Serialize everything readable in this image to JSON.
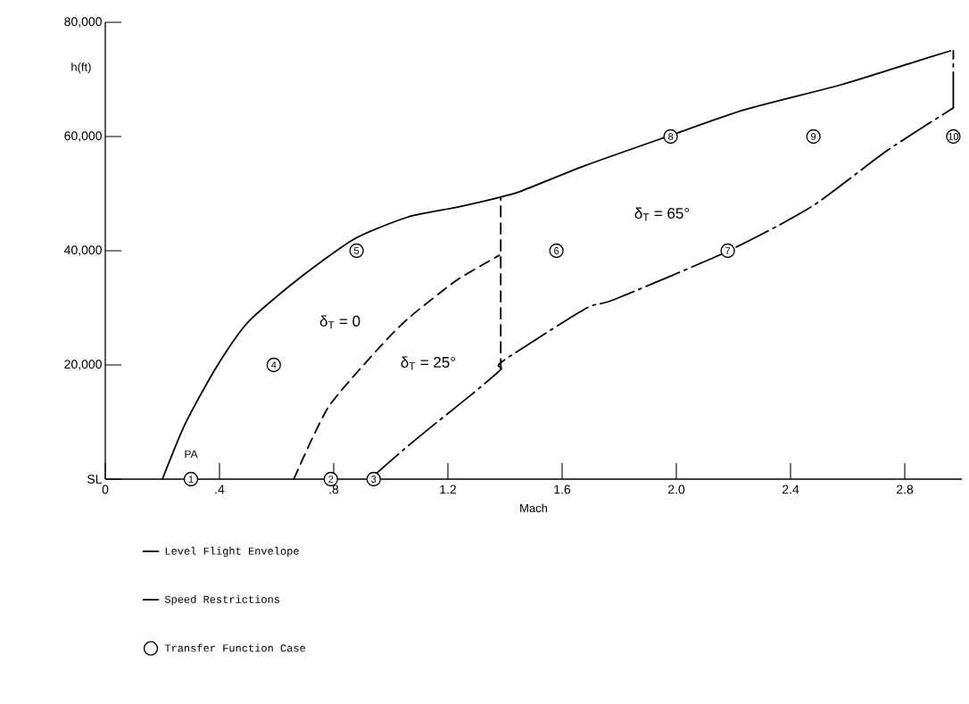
{
  "chart_data": {
    "type": "line",
    "xlabel": "Mach",
    "ylabel": "h(ft)",
    "xlim": [
      0,
      3.0
    ],
    "ylim": [
      0,
      80000
    ],
    "xticks": [
      0,
      {
        "value": 0.4,
        "label": ".4"
      },
      {
        "value": 0.8,
        "label": ".8"
      },
      1.2,
      1.6,
      {
        "value": 2.0,
        "label": "2.0"
      },
      2.4,
      2.8
    ],
    "yticks": [
      {
        "value": 0,
        "label": "SL"
      },
      {
        "value": 20000,
        "label": "20,000"
      },
      {
        "value": 40000,
        "label": "40,000"
      },
      {
        "value": 60000,
        "label": "60,000"
      },
      {
        "value": 80000,
        "label": "80,000"
      }
    ],
    "grid": false,
    "legend": "bottom",
    "marker": "none",
    "series": [
      {
        "name": "Level Flight Envelope",
        "type": "line",
        "color": "#000000",
        "line_style": "solid",
        "x": [
          0.2,
          0.28,
          0.39,
          0.5,
          0.67,
          0.87,
          1.06,
          1.23,
          1.385,
          1.46,
          1.68,
          1.98,
          2.24,
          2.58,
          2.83,
          2.96
        ],
        "values": [
          0,
          9700,
          19700,
          27500,
          34800,
          42000,
          45900,
          47600,
          49400,
          50500,
          54900,
          60200,
          64700,
          69100,
          73000,
          75000
        ]
      },
      {
        "name": "Speed Restrictions",
        "type": "line",
        "color": "#000000",
        "line_style": "dashdot",
        "x": [
          0.944,
          0.95,
          1.06,
          1.17,
          1.28,
          1.385,
          1.39,
          1.68,
          1.78,
          2.175,
          2.47,
          2.74,
          2.97
        ],
        "values": [
          0,
          1000,
          5800,
          10300,
          14700,
          19200,
          20600,
          29800,
          31400,
          39800,
          47600,
          57600,
          65000
        ]
      },
      {
        "type": "line",
        "color": "#000000",
        "line_style": "dashdot",
        "x": [
          2.97,
          2.97
        ],
        "values": [
          65000,
          75000
        ]
      },
      {
        "type": "line",
        "color": "#000000",
        "line_style": "dashed",
        "x": [
          0.66,
          0.78,
          0.95,
          1.06,
          1.23,
          1.38
        ],
        "values": [
          0,
          12500,
          22500,
          28100,
          34800,
          39200
        ]
      },
      {
        "type": "line",
        "color": "#000000",
        "line_style": "dashed",
        "x": [
          1.385,
          1.385
        ],
        "values": [
          19200,
          49400
        ]
      },
      {
        "name": "Transfer Function Case",
        "type": "scatter",
        "color": "#000000",
        "marker": "circle",
        "x": [
          0.3,
          0.79,
          0.94,
          0.59,
          0.88,
          1.58,
          2.18,
          1.98,
          2.48,
          2.97
        ],
        "values": [
          0,
          0,
          0,
          20000,
          40000,
          40000,
          40000,
          60000,
          60000,
          60000
        ]
      }
    ],
    "annotations": [
      {
        "text": "1",
        "x": 0.3,
        "y": 0
      },
      {
        "text": "2",
        "x": 0.79,
        "y": 0
      },
      {
        "text": "3",
        "x": 0.94,
        "y": 0
      },
      {
        "text": "4",
        "x": 0.59,
        "y": 20000
      },
      {
        "text": "5",
        "x": 0.88,
        "y": 40000
      },
      {
        "text": "6",
        "x": 1.58,
        "y": 40000
      },
      {
        "text": "7",
        "x": 2.18,
        "y": 40000
      },
      {
        "text": "8",
        "x": 1.98,
        "y": 60000
      },
      {
        "text": "9",
        "x": 2.48,
        "y": 60000
      },
      {
        "text": "10",
        "x": 2.97,
        "y": 60000
      },
      "PA",
      "δ$_{T}$ = 0",
      "δ$_{T}$ = 25°",
      "δ$_{T}$ = 65°"
    ]
  }
}
